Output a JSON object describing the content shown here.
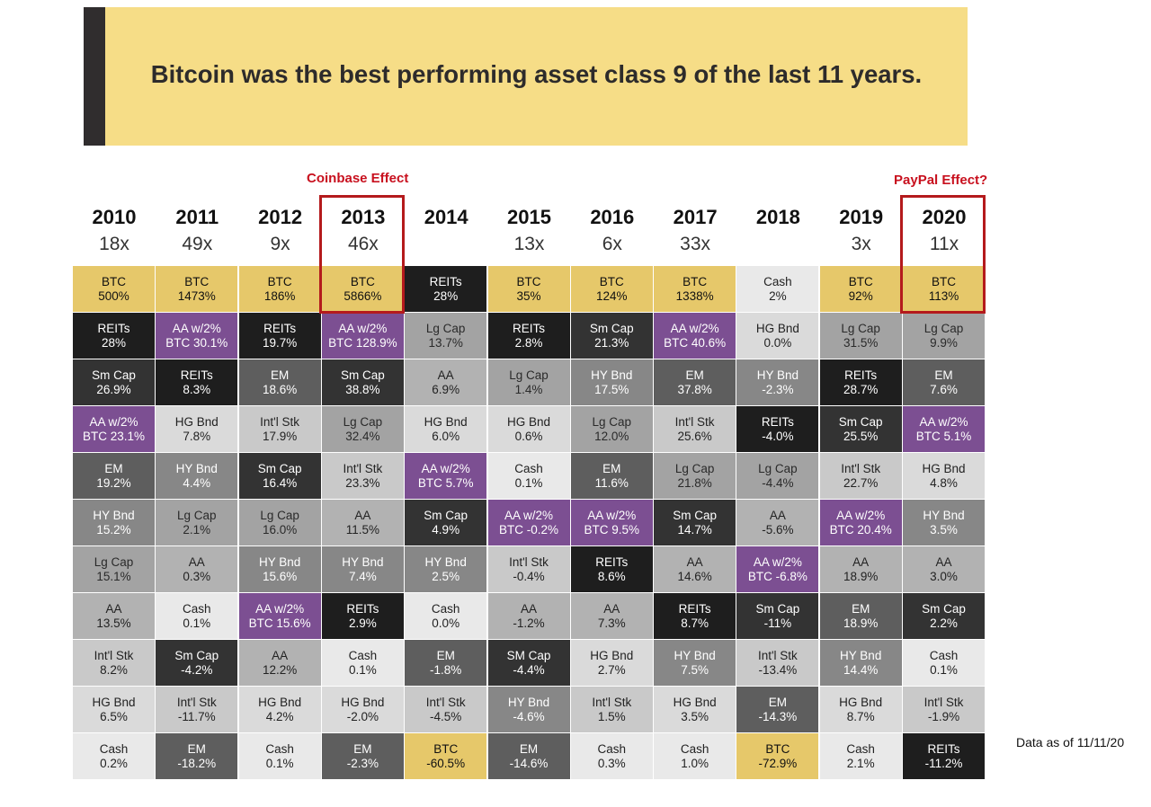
{
  "title": "Bitcoin was the best performing asset class 9 of the last 11 years.",
  "notes": {
    "coinbase": "Coinbase Effect",
    "paypal": "PayPal Effect?"
  },
  "data_as_of": "Data as of 11/11/20",
  "colors": {
    "banner": "#f6dd87",
    "banner_bar": "#302d2e",
    "highlight": "#b41a1c",
    "note": "#c8101e",
    "categories": {
      "BTC": {
        "bg": "#e6c86a",
        "fg": "#111111"
      },
      "REITs": {
        "bg": "#1e1e1e",
        "fg": "#ffffff"
      },
      "AA w/2% BTC": {
        "bg": "#7c4f92",
        "fg": "#ffffff"
      },
      "Sm Cap": {
        "bg": "#333333",
        "fg": "#ffffff"
      },
      "EM": {
        "bg": "#5e5e5e",
        "fg": "#ffffff"
      },
      "HY Bnd": {
        "bg": "#878787",
        "fg": "#ffffff"
      },
      "Lg Cap": {
        "bg": "#a3a3a3",
        "fg": "#2a2a2a"
      },
      "AA": {
        "bg": "#b2b2b2",
        "fg": "#222222"
      },
      "Int'l Stk": {
        "bg": "#c9c9c9",
        "fg": "#222222"
      },
      "HG Bnd": {
        "bg": "#dadada",
        "fg": "#222222"
      },
      "Cash": {
        "bg": "#e9e9e9",
        "fg": "#222222"
      }
    }
  },
  "chart_data": {
    "type": "table",
    "title": "Bitcoin was the best performing asset class 9 of the last 11 years.",
    "years": [
      "2010",
      "2011",
      "2012",
      "2013",
      "2014",
      "2015",
      "2016",
      "2017",
      "2018",
      "2019",
      "2020"
    ],
    "multiples": [
      "18x",
      "49x",
      "9x",
      "46x",
      "",
      "13x",
      "6x",
      "33x",
      "",
      "3x",
      "11x"
    ],
    "highlighted_years": [
      "2013",
      "2020"
    ],
    "columns": [
      {
        "year": "2010",
        "cells": [
          {
            "label": "BTC",
            "value": "500%",
            "category": "BTC"
          },
          {
            "label": "REITs",
            "value": "28%",
            "category": "REITs"
          },
          {
            "label": "Sm Cap",
            "value": "26.9%",
            "category": "Sm Cap"
          },
          {
            "label": "AA w/2%",
            "value": "BTC 23.1%",
            "category": "AA w/2% BTC"
          },
          {
            "label": "EM",
            "value": "19.2%",
            "category": "EM"
          },
          {
            "label": "HY Bnd",
            "value": "15.2%",
            "category": "HY Bnd"
          },
          {
            "label": "Lg Cap",
            "value": "15.1%",
            "category": "Lg Cap"
          },
          {
            "label": "AA",
            "value": "13.5%",
            "category": "AA"
          },
          {
            "label": "Int'l Stk",
            "value": "8.2%",
            "category": "Int'l Stk"
          },
          {
            "label": "HG Bnd",
            "value": "6.5%",
            "category": "HG Bnd"
          },
          {
            "label": "Cash",
            "value": "0.2%",
            "category": "Cash"
          }
        ]
      },
      {
        "year": "2011",
        "cells": [
          {
            "label": "BTC",
            "value": "1473%",
            "category": "BTC"
          },
          {
            "label": "AA w/2%",
            "value": "BTC 30.1%",
            "category": "AA w/2% BTC"
          },
          {
            "label": "REITs",
            "value": "8.3%",
            "category": "REITs"
          },
          {
            "label": "HG Bnd",
            "value": "7.8%",
            "category": "HG Bnd"
          },
          {
            "label": "HY Bnd",
            "value": "4.4%",
            "category": "HY Bnd"
          },
          {
            "label": "Lg Cap",
            "value": "2.1%",
            "category": "Lg Cap"
          },
          {
            "label": "AA",
            "value": "0.3%",
            "category": "AA"
          },
          {
            "label": "Cash",
            "value": "0.1%",
            "category": "Cash"
          },
          {
            "label": "Sm Cap",
            "value": "-4.2%",
            "category": "Sm Cap"
          },
          {
            "label": "Int'l Stk",
            "value": "-11.7%",
            "category": "Int'l Stk"
          },
          {
            "label": "EM",
            "value": "-18.2%",
            "category": "EM"
          }
        ]
      },
      {
        "year": "2012",
        "cells": [
          {
            "label": "BTC",
            "value": "186%",
            "category": "BTC"
          },
          {
            "label": "REITs",
            "value": "19.7%",
            "category": "REITs"
          },
          {
            "label": "EM",
            "value": "18.6%",
            "category": "EM"
          },
          {
            "label": "Int'l Stk",
            "value": "17.9%",
            "category": "Int'l Stk"
          },
          {
            "label": "Sm Cap",
            "value": "16.4%",
            "category": "Sm Cap"
          },
          {
            "label": "Lg Cap",
            "value": "16.0%",
            "category": "Lg Cap"
          },
          {
            "label": "HY Bnd",
            "value": "15.6%",
            "category": "HY Bnd"
          },
          {
            "label": "AA w/2%",
            "value": "BTC 15.6%",
            "category": "AA w/2% BTC"
          },
          {
            "label": "AA",
            "value": "12.2%",
            "category": "AA"
          },
          {
            "label": "HG Bnd",
            "value": "4.2%",
            "category": "HG Bnd"
          },
          {
            "label": "Cash",
            "value": "0.1%",
            "category": "Cash"
          }
        ]
      },
      {
        "year": "2013",
        "cells": [
          {
            "label": "BTC",
            "value": "5866%",
            "category": "BTC"
          },
          {
            "label": "AA w/2%",
            "value": "BTC 128.9%",
            "category": "AA w/2% BTC"
          },
          {
            "label": "Sm Cap",
            "value": "38.8%",
            "category": "Sm Cap"
          },
          {
            "label": "Lg Cap",
            "value": "32.4%",
            "category": "Lg Cap"
          },
          {
            "label": "Int'l Stk",
            "value": "23.3%",
            "category": "Int'l Stk"
          },
          {
            "label": "AA",
            "value": "11.5%",
            "category": "AA"
          },
          {
            "label": "HY Bnd",
            "value": "7.4%",
            "category": "HY Bnd"
          },
          {
            "label": "REITs",
            "value": "2.9%",
            "category": "REITs"
          },
          {
            "label": "Cash",
            "value": "0.1%",
            "category": "Cash"
          },
          {
            "label": "HG Bnd",
            "value": "-2.0%",
            "category": "HG Bnd"
          },
          {
            "label": "EM",
            "value": "-2.3%",
            "category": "EM"
          }
        ]
      },
      {
        "year": "2014",
        "cells": [
          {
            "label": "REITs",
            "value": "28%",
            "category": "REITs"
          },
          {
            "label": "Lg Cap",
            "value": "13.7%",
            "category": "Lg Cap"
          },
          {
            "label": "AA",
            "value": "6.9%",
            "category": "AA"
          },
          {
            "label": "HG Bnd",
            "value": "6.0%",
            "category": "HG Bnd"
          },
          {
            "label": "AA w/2%",
            "value": "BTC 5.7%",
            "category": "AA w/2% BTC"
          },
          {
            "label": "Sm Cap",
            "value": "4.9%",
            "category": "Sm Cap"
          },
          {
            "label": "HY Bnd",
            "value": "2.5%",
            "category": "HY Bnd"
          },
          {
            "label": "Cash",
            "value": "0.0%",
            "category": "Cash"
          },
          {
            "label": "EM",
            "value": "-1.8%",
            "category": "EM"
          },
          {
            "label": "Int'l Stk",
            "value": "-4.5%",
            "category": "Int'l Stk"
          },
          {
            "label": "BTC",
            "value": "-60.5%",
            "category": "BTC"
          }
        ]
      },
      {
        "year": "2015",
        "cells": [
          {
            "label": "BTC",
            "value": "35%",
            "category": "BTC"
          },
          {
            "label": "REITs",
            "value": "2.8%",
            "category": "REITs"
          },
          {
            "label": "Lg Cap",
            "value": "1.4%",
            "category": "Lg Cap"
          },
          {
            "label": "HG Bnd",
            "value": "0.6%",
            "category": "HG Bnd"
          },
          {
            "label": "Cash",
            "value": "0.1%",
            "category": "Cash"
          },
          {
            "label": "AA w/2%",
            "value": "BTC -0.2%",
            "category": "AA w/2% BTC"
          },
          {
            "label": "Int'l Stk",
            "value": "-0.4%",
            "category": "Int'l Stk"
          },
          {
            "label": "AA",
            "value": "-1.2%",
            "category": "AA"
          },
          {
            "label": "SM Cap",
            "value": "-4.4%",
            "category": "Sm Cap"
          },
          {
            "label": "HY Bnd",
            "value": "-4.6%",
            "category": "HY Bnd"
          },
          {
            "label": "EM",
            "value": "-14.6%",
            "category": "EM"
          }
        ]
      },
      {
        "year": "2016",
        "cells": [
          {
            "label": "BTC",
            "value": "124%",
            "category": "BTC"
          },
          {
            "label": "Sm Cap",
            "value": "21.3%",
            "category": "Sm Cap"
          },
          {
            "label": "HY Bnd",
            "value": "17.5%",
            "category": "HY Bnd"
          },
          {
            "label": "Lg Cap",
            "value": "12.0%",
            "category": "Lg Cap"
          },
          {
            "label": "EM",
            "value": "11.6%",
            "category": "EM"
          },
          {
            "label": "AA w/2%",
            "value": "BTC 9.5%",
            "category": "AA w/2% BTC"
          },
          {
            "label": "REITs",
            "value": "8.6%",
            "category": "REITs"
          },
          {
            "label": "AA",
            "value": "7.3%",
            "category": "AA"
          },
          {
            "label": "HG Bnd",
            "value": "2.7%",
            "category": "HG Bnd"
          },
          {
            "label": "Int'l Stk",
            "value": "1.5%",
            "category": "Int'l Stk"
          },
          {
            "label": "Cash",
            "value": "0.3%",
            "category": "Cash"
          }
        ]
      },
      {
        "year": "2017",
        "cells": [
          {
            "label": "BTC",
            "value": "1338%",
            "category": "BTC"
          },
          {
            "label": "AA w/2%",
            "value": "BTC 40.6%",
            "category": "AA w/2% BTC"
          },
          {
            "label": "EM",
            "value": "37.8%",
            "category": "EM"
          },
          {
            "label": "Int'l Stk",
            "value": "25.6%",
            "category": "Int'l Stk"
          },
          {
            "label": "Lg Cap",
            "value": "21.8%",
            "category": "Lg Cap"
          },
          {
            "label": "Sm Cap",
            "value": "14.7%",
            "category": "Sm Cap"
          },
          {
            "label": "AA",
            "value": "14.6%",
            "category": "AA"
          },
          {
            "label": "REITs",
            "value": "8.7%",
            "category": "REITs"
          },
          {
            "label": "HY Bnd",
            "value": "7.5%",
            "category": "HY Bnd"
          },
          {
            "label": "HG Bnd",
            "value": "3.5%",
            "category": "HG Bnd"
          },
          {
            "label": "Cash",
            "value": "1.0%",
            "category": "Cash"
          }
        ]
      },
      {
        "year": "2018",
        "cells": [
          {
            "label": "Cash",
            "value": "2%",
            "category": "Cash"
          },
          {
            "label": "HG Bnd",
            "value": "0.0%",
            "category": "HG Bnd"
          },
          {
            "label": "HY Bnd",
            "value": "-2.3%",
            "category": "HY Bnd"
          },
          {
            "label": "REITs",
            "value": "-4.0%",
            "category": "REITs"
          },
          {
            "label": "Lg Cap",
            "value": "-4.4%",
            "category": "Lg Cap"
          },
          {
            "label": "AA",
            "value": "-5.6%",
            "category": "AA"
          },
          {
            "label": "AA w/2%",
            "value": "BTC -6.8%",
            "category": "AA w/2% BTC"
          },
          {
            "label": "Sm Cap",
            "value": "-11%",
            "category": "Sm Cap"
          },
          {
            "label": "Int'l Stk",
            "value": "-13.4%",
            "category": "Int'l Stk"
          },
          {
            "label": "EM",
            "value": "-14.3%",
            "category": "EM"
          },
          {
            "label": "BTC",
            "value": "-72.9%",
            "category": "BTC"
          }
        ]
      },
      {
        "year": "2019",
        "cells": [
          {
            "label": "BTC",
            "value": "92%",
            "category": "BTC"
          },
          {
            "label": "Lg Cap",
            "value": "31.5%",
            "category": "Lg Cap"
          },
          {
            "label": "REITs",
            "value": "28.7%",
            "category": "REITs"
          },
          {
            "label": "Sm Cap",
            "value": "25.5%",
            "category": "Sm Cap"
          },
          {
            "label": "Int'l Stk",
            "value": "22.7%",
            "category": "Int'l Stk"
          },
          {
            "label": "AA w/2%",
            "value": "BTC 20.4%",
            "category": "AA w/2% BTC"
          },
          {
            "label": "AA",
            "value": "18.9%",
            "category": "AA"
          },
          {
            "label": "EM",
            "value": "18.9%",
            "category": "EM"
          },
          {
            "label": "HY Bnd",
            "value": "14.4%",
            "category": "HY Bnd"
          },
          {
            "label": "HG Bnd",
            "value": "8.7%",
            "category": "HG Bnd"
          },
          {
            "label": "Cash",
            "value": "2.1%",
            "category": "Cash"
          }
        ]
      },
      {
        "year": "2020",
        "cells": [
          {
            "label": "BTC",
            "value": "113%",
            "category": "BTC"
          },
          {
            "label": "Lg Cap",
            "value": "9.9%",
            "category": "Lg Cap"
          },
          {
            "label": "EM",
            "value": "7.6%",
            "category": "EM"
          },
          {
            "label": "AA w/2%",
            "value": "BTC 5.1%",
            "category": "AA w/2% BTC"
          },
          {
            "label": "HG Bnd",
            "value": "4.8%",
            "category": "HG Bnd"
          },
          {
            "label": "HY Bnd",
            "value": "3.5%",
            "category": "HY Bnd"
          },
          {
            "label": "AA",
            "value": "3.0%",
            "category": "AA"
          },
          {
            "label": "Sm Cap",
            "value": "2.2%",
            "category": "Sm Cap"
          },
          {
            "label": "Cash",
            "value": "0.1%",
            "category": "Cash"
          },
          {
            "label": "Int'l Stk",
            "value": "-1.9%",
            "category": "Int'l Stk"
          },
          {
            "label": "REITs",
            "value": "-11.2%",
            "category": "REITs"
          }
        ]
      }
    ]
  }
}
